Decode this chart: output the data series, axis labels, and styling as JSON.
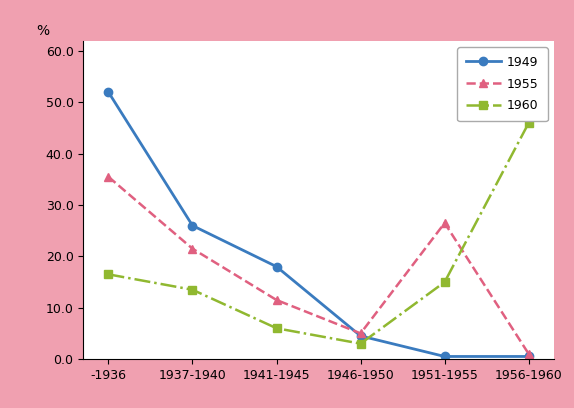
{
  "x_labels": [
    "-1936",
    "1937-1940",
    "1941-1945",
    "1946-1950",
    "1951-1955",
    "1956-1960"
  ],
  "series": {
    "1949": {
      "values": [
        52.0,
        26.0,
        18.0,
        4.5,
        0.5,
        0.5
      ],
      "color": "#3a7bbf",
      "linestyle": "-",
      "marker": "o",
      "linewidth": 2.0,
      "markersize": 6
    },
    "1955": {
      "values": [
        35.5,
        21.5,
        11.5,
        5.0,
        26.5,
        1.0
      ],
      "color": "#e06080",
      "linestyle": "--",
      "marker": "^",
      "linewidth": 1.8,
      "markersize": 6
    },
    "1960": {
      "values": [
        16.5,
        13.5,
        6.0,
        3.0,
        15.0,
        46.0
      ],
      "color": "#90b830",
      "linestyle": "-.",
      "marker": "s",
      "linewidth": 1.8,
      "markersize": 6
    }
  },
  "percent_label": "%",
  "ylim": [
    0,
    62
  ],
  "yticks": [
    0.0,
    10.0,
    20.0,
    30.0,
    40.0,
    50.0,
    60.0
  ],
  "ytick_labels": [
    "0.0",
    "10.0",
    "20.0",
    "30.0",
    "40.0",
    "50.0",
    "60.0"
  ],
  "background_color": "#f0a0b0",
  "plot_bg_color": "#ffffff",
  "legend_labels": [
    "1949",
    "1955",
    "1960"
  ],
  "fig_width": 5.74,
  "fig_height": 4.08,
  "dpi": 100
}
